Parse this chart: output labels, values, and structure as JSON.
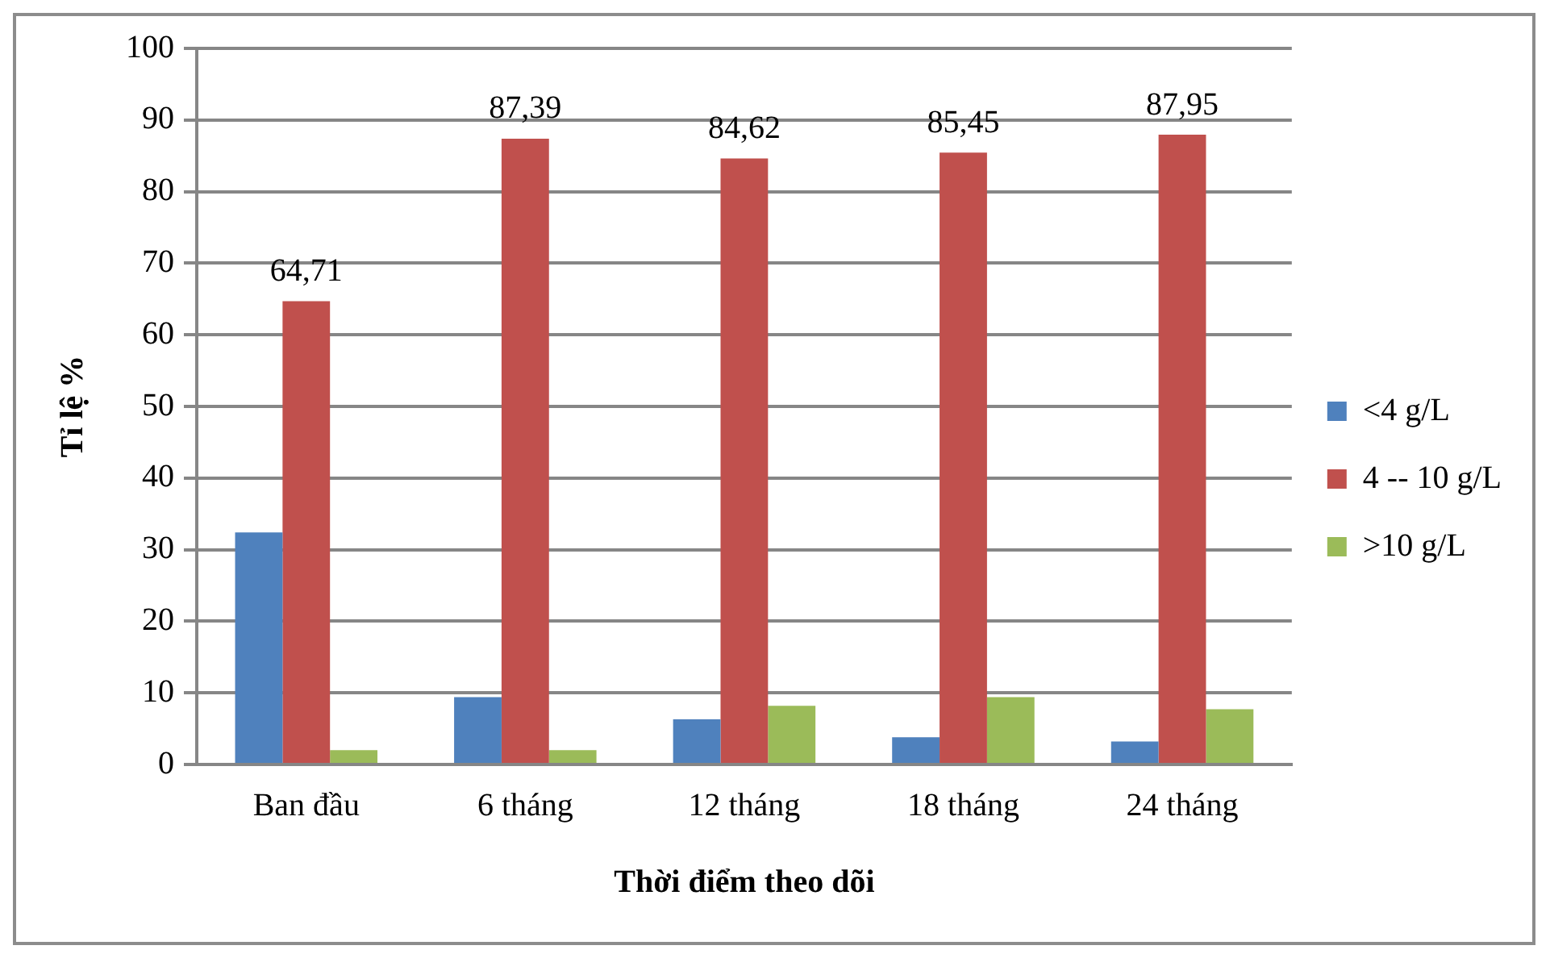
{
  "chart_data": {
    "type": "bar",
    "xlabel": "Thời điểm theo dõi",
    "ylabel": "Tỉ lệ %",
    "categories": [
      "Ban đầu",
      "6 tháng",
      "12 tháng",
      "18 tháng",
      "24 tháng"
    ],
    "series": [
      {
        "name": "<4 g/L",
        "color": "#4f81bd",
        "values": [
          32.4,
          9.4,
          6.3,
          3.8,
          3.2
        ]
      },
      {
        "name": "4 -- 10 g/L",
        "color": "#c0504d",
        "values": [
          64.71,
          87.39,
          84.62,
          85.45,
          87.95
        ],
        "value_labels": [
          "64,71",
          "87,39",
          "84,62",
          "85,45",
          "87,95"
        ]
      },
      {
        "name": ">10 g/L",
        "color": "#9bbb59",
        "values": [
          2.0,
          2.0,
          8.2,
          9.4,
          7.7
        ]
      }
    ],
    "ylim": [
      0,
      100
    ],
    "yticks": [
      0,
      10,
      20,
      30,
      40,
      50,
      60,
      70,
      80,
      90,
      100
    ],
    "grid": "y",
    "legend": "right"
  }
}
